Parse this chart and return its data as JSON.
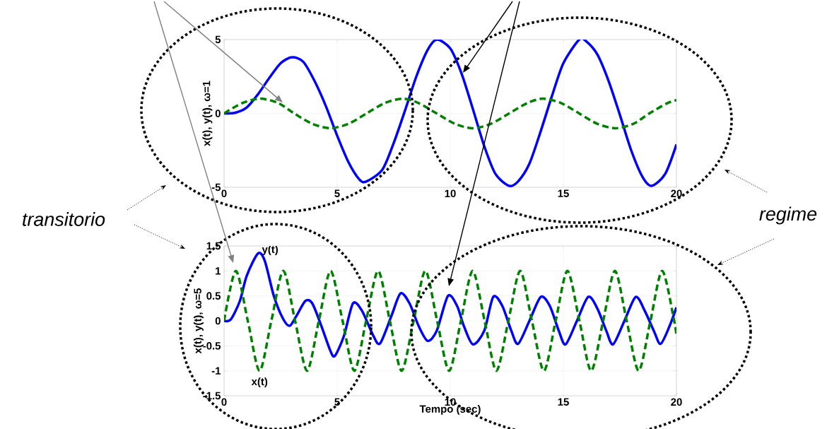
{
  "chart_data": [
    {
      "type": "line",
      "ylabel": "x(t), y(t), ω=1",
      "xlim": [
        0,
        20
      ],
      "ylim": [
        -5,
        5
      ],
      "xticks": [
        0,
        5,
        10,
        15,
        20
      ],
      "yticks": [
        -5,
        0,
        5
      ],
      "grid": true,
      "annotations": [
        "transitorio",
        "regime"
      ],
      "series": [
        {
          "color": "#0000ff",
          "line_style": "solid",
          "x": [
            0,
            0.5,
            1,
            1.5,
            2,
            2.5,
            3,
            3.5,
            4,
            4.5,
            5,
            5.5,
            6,
            6.3,
            7,
            7.5,
            8,
            8.5,
            9,
            9.4,
            10,
            10.5,
            11,
            11.5,
            12,
            12.6,
            13,
            13.5,
            14,
            14.5,
            15,
            15.7,
            16,
            16.5,
            17,
            17.5,
            18,
            18.5,
            18.9,
            19.5,
            20
          ],
          "values": [
            0,
            0.05,
            0.4,
            1.3,
            2.4,
            3.4,
            3.8,
            3.5,
            2.2,
            0.5,
            -1.5,
            -3.3,
            -4.5,
            -4.6,
            -3.8,
            -2,
            0.2,
            2.5,
            4.3,
            5,
            4.4,
            2.7,
            0.3,
            -2.2,
            -4.1,
            -4.9,
            -4.6,
            -3.4,
            -1.2,
            1.2,
            3.4,
            5,
            4.9,
            4,
            2.2,
            -0.1,
            -2.5,
            -4.3,
            -4.9,
            -4.1,
            -2.1
          ]
        },
        {
          "color": "#008000",
          "line_style": "dashed",
          "x": [
            0,
            0.8,
            1.6,
            2.4,
            3.1,
            3.9,
            4.7,
            5.5,
            6.3,
            7.1,
            7.9,
            8.6,
            9.4,
            10.2,
            11,
            11.8,
            12.6,
            13.4,
            14.1,
            14.9,
            15.7,
            16.5,
            17.3,
            18.1,
            18.8,
            19.6,
            20
          ],
          "values": [
            0,
            0.7,
            1,
            0.7,
            0,
            -0.7,
            -1,
            -0.7,
            0,
            0.7,
            1,
            0.7,
            0,
            -0.7,
            -1,
            -0.7,
            0,
            0.7,
            1,
            0.7,
            0,
            -0.7,
            -1,
            -0.7,
            0,
            0.7,
            0.9
          ]
        }
      ]
    },
    {
      "type": "line",
      "xlabel": "Tempo      (sec)",
      "ylabel": "x(t), y(t), ω=5",
      "xlim": [
        0,
        20
      ],
      "ylim": [
        -1.5,
        1.5
      ],
      "xticks": [
        0,
        5,
        10,
        15,
        20
      ],
      "yticks": [
        -1.5,
        -1,
        -0.5,
        0,
        0.5,
        1,
        1.5
      ],
      "grid": true,
      "annotations": [
        {
          "text": "y(t)",
          "x": 1.5,
          "y": 1.35
        },
        {
          "text": "x(t)",
          "x": 1.57,
          "y": -1
        }
      ],
      "series": [
        {
          "color": "#0000ff",
          "line_style": "solid",
          "x": [
            0,
            0.3,
            0.7,
            1,
            1.5,
            1.8,
            2.2,
            2.6,
            2.9,
            3.2,
            3.6,
            3.9,
            4.3,
            4.7,
            4.9,
            5.3,
            5.7,
            6.1,
            6.6,
            6.9,
            7.4,
            7.8,
            8.2,
            8.6,
            9,
            9.4,
            9.9,
            10.3,
            10.6,
            11,
            11.5,
            11.9,
            12.3,
            12.7,
            13,
            13.5,
            14,
            14.4,
            14.8,
            15.1,
            15.6,
            16.1,
            16.5,
            16.9,
            17.2,
            17.7,
            18.2,
            18.6,
            19,
            19.3,
            19.7,
            20
          ],
          "values": [
            0,
            0.03,
            0.4,
            0.9,
            1.35,
            1.2,
            0.5,
            0.05,
            -0.1,
            0.1,
            0.4,
            0.35,
            -0.1,
            -0.6,
            -0.7,
            -0.3,
            0.35,
            0.2,
            -0.3,
            -0.45,
            0.1,
            0.55,
            0.35,
            -0.1,
            -0.4,
            -0.2,
            0.5,
            0.3,
            -0.1,
            -0.47,
            -0.2,
            0.48,
            0.3,
            -0.2,
            -0.46,
            0,
            0.48,
            0.3,
            -0.2,
            -0.47,
            0,
            0.48,
            0.25,
            -0.2,
            -0.47,
            0,
            0.48,
            0.2,
            -0.2,
            -0.46,
            -0.1,
            0.27
          ]
        },
        {
          "color": "#008000",
          "line_style": "dashed",
          "x": [
            0,
            0.52,
            1.05,
            1.57,
            2.09,
            2.62,
            3.14,
            3.67,
            4.19,
            4.71,
            5.24,
            5.76,
            6.28,
            6.81,
            7.33,
            7.85,
            8.38,
            8.9,
            9.42,
            9.95,
            10.47,
            10.99,
            11.52,
            12.04,
            12.57,
            13.09,
            13.61,
            14.14,
            14.66,
            15.18,
            15.71,
            16.23,
            16.76,
            17.28,
            17.8,
            18.33,
            18.85,
            19.37,
            19.9,
            20
          ],
          "values": [
            0,
            1,
            0,
            -1,
            0,
            1,
            0,
            -1,
            0,
            1,
            0,
            -1,
            0,
            1,
            0,
            -1,
            0,
            1,
            0,
            -1,
            0,
            1,
            0,
            -1,
            0,
            1,
            0,
            -1,
            0,
            1,
            0,
            -1,
            0,
            1,
            0,
            -1,
            0,
            1,
            0,
            -0.3
          ]
        }
      ]
    }
  ]
}
